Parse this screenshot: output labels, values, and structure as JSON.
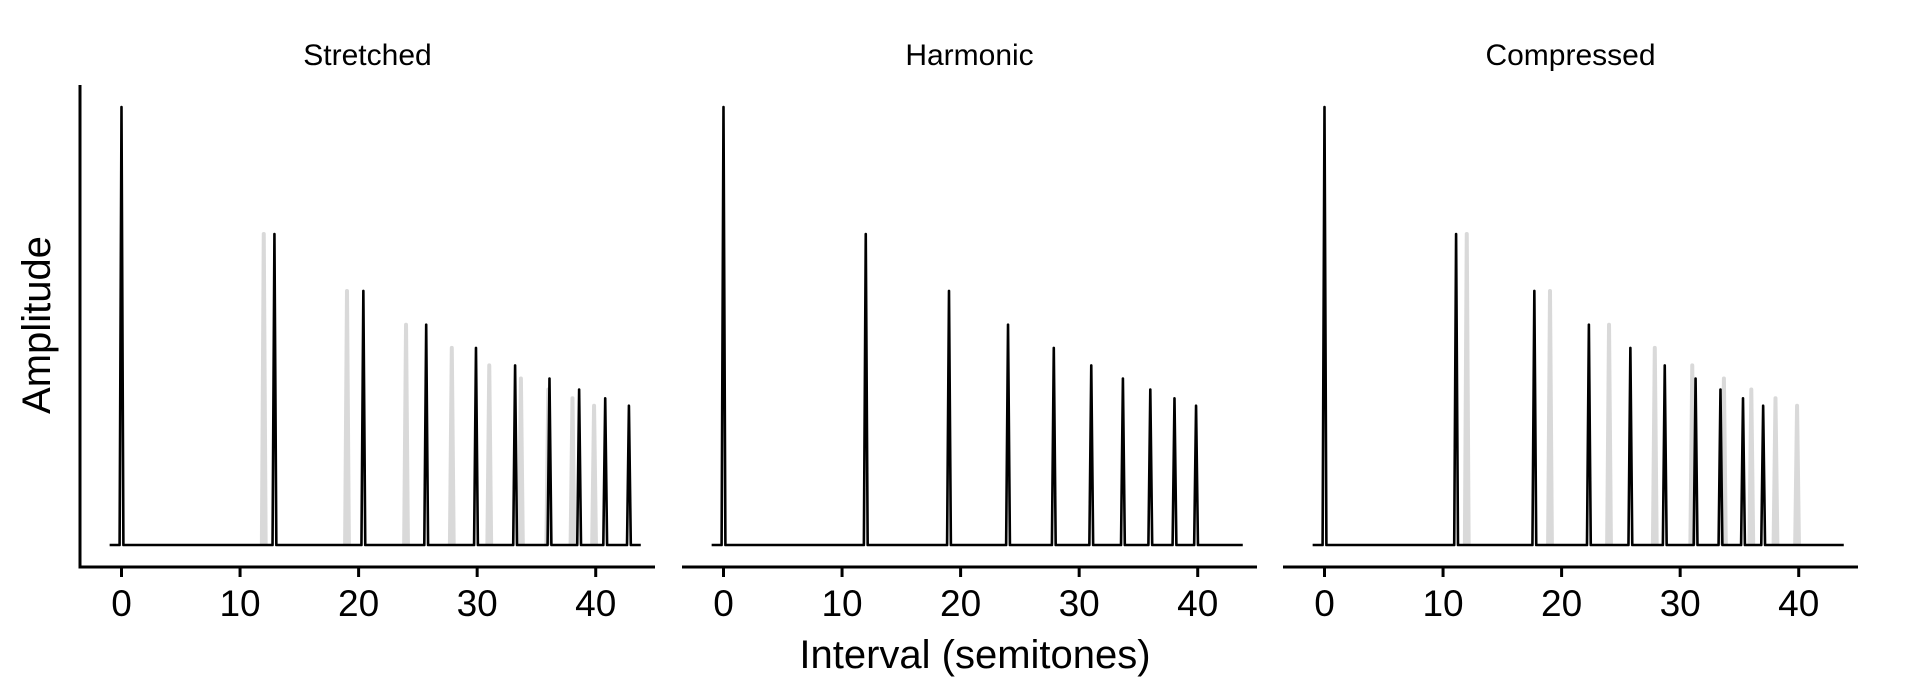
{
  "figure": {
    "ylabel": "Amplitude",
    "xlabel": "Interval (semitones)"
  },
  "colors": {
    "line": "#000000",
    "reference": "#d9d9d9",
    "background": "#ffffff"
  },
  "chart_data": [
    {
      "type": "line",
      "title": "Stretched",
      "xlabel": "Interval (semitones)",
      "ylabel": "Amplitude",
      "xlim": [
        -3.5,
        45
      ],
      "x_ticks": [
        0,
        10,
        20,
        30,
        40
      ],
      "ylim": [
        0,
        1.05
      ],
      "grid": false,
      "series": [
        {
          "x": [
            0,
            12.9,
            20.4,
            25.7,
            29.9,
            33.2,
            36.1,
            38.6,
            40.8,
            42.8
          ],
          "values": [
            1.0,
            0.71,
            0.58,
            0.503,
            0.45,
            0.41,
            0.38,
            0.355,
            0.335,
            0.318
          ]
        },
        {
          "x": [
            0,
            12,
            19.02,
            24,
            27.86,
            31.02,
            33.69,
            36,
            38.04,
            39.86
          ],
          "values": [
            1.0,
            0.71,
            0.58,
            0.503,
            0.45,
            0.41,
            0.38,
            0.355,
            0.335,
            0.318
          ]
        }
      ]
    },
    {
      "type": "line",
      "title": "Harmonic",
      "xlabel": "Interval (semitones)",
      "ylabel": "Amplitude",
      "xlim": [
        -3.5,
        45
      ],
      "x_ticks": [
        0,
        10,
        20,
        30,
        40
      ],
      "ylim": [
        0,
        1.05
      ],
      "grid": false,
      "series": [
        {
          "x": [
            0,
            12,
            19.02,
            24,
            27.86,
            31.02,
            33.69,
            36,
            38.04,
            39.86
          ],
          "values": [
            1.0,
            0.71,
            0.58,
            0.503,
            0.45,
            0.41,
            0.38,
            0.355,
            0.335,
            0.318
          ]
        }
      ]
    },
    {
      "type": "line",
      "title": "Compressed",
      "xlabel": "Interval (semitones)",
      "ylabel": "Amplitude",
      "xlim": [
        -3.5,
        45
      ],
      "x_ticks": [
        0,
        10,
        20,
        30,
        40
      ],
      "ylim": [
        0,
        1.05
      ],
      "grid": false,
      "series": [
        {
          "x": [
            0,
            11.1,
            17.7,
            22.3,
            25.8,
            28.7,
            31.3,
            33.4,
            35.3,
            37.0
          ],
          "values": [
            1.0,
            0.71,
            0.58,
            0.503,
            0.45,
            0.41,
            0.38,
            0.355,
            0.335,
            0.318
          ]
        },
        {
          "x": [
            0,
            12,
            19.02,
            24,
            27.86,
            31.02,
            33.69,
            36,
            38.04,
            39.86
          ],
          "values": [
            1.0,
            0.71,
            0.58,
            0.503,
            0.45,
            0.41,
            0.38,
            0.355,
            0.335,
            0.318
          ]
        }
      ]
    }
  ]
}
